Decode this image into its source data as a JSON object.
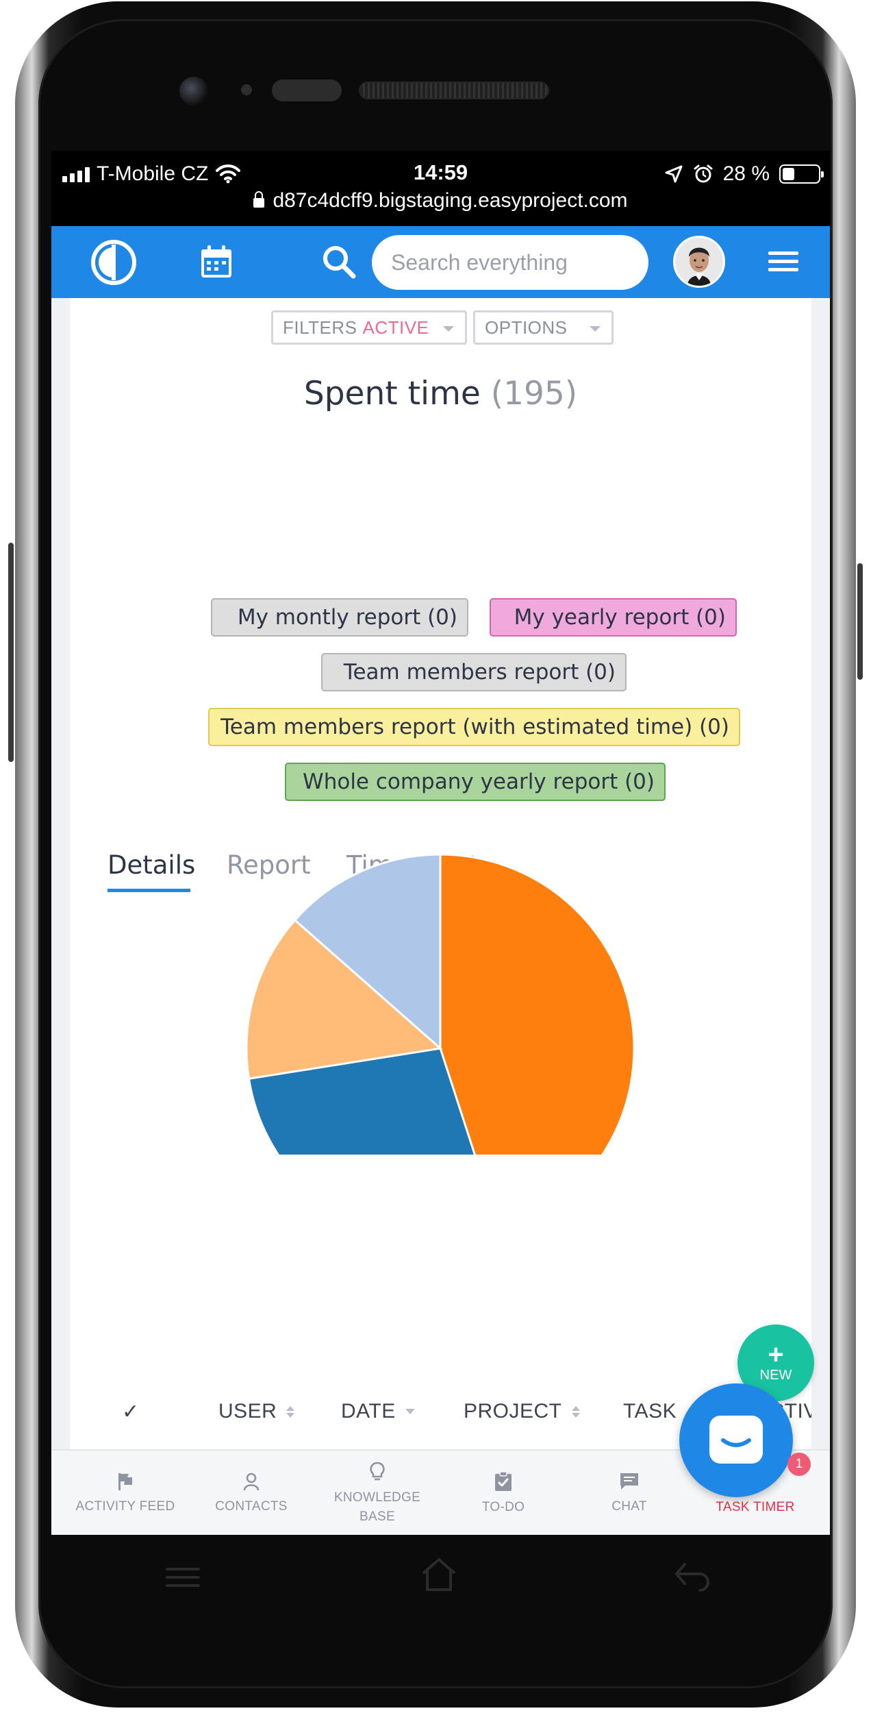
{
  "status_bar": {
    "carrier": "T-Mobile CZ",
    "time": "14:59",
    "battery": "28 %",
    "url": "d87c4dcff9.bigstaging.easyproject.com"
  },
  "header": {
    "search_placeholder": "Search everything",
    "icons": [
      "logo-icon",
      "calendar-icon",
      "search-icon",
      "hamburger-menu-icon"
    ]
  },
  "toolbar": {
    "filters_label": "FILTERS",
    "filters_state": "ACTIVE",
    "options_label": "OPTIONS"
  },
  "page": {
    "title": "Spent time",
    "count": "(195)"
  },
  "saved_queries": [
    {
      "label": "My montly report (0)",
      "bg": "#dedede",
      "border": "#b5b5b5"
    },
    {
      "label": "My yearly report (0)",
      "bg": "#f0a9dc",
      "border": "#d364b5"
    },
    {
      "label": "Team members report (0)",
      "bg": "#dedede",
      "border": "#b5b5b5"
    },
    {
      "label": "Team members report (with estimated time) (0)",
      "bg": "#f9ef9c",
      "border": "#e1ca4f"
    },
    {
      "label": "Whole company yearly report (0)",
      "bg": "#a9d49b",
      "border": "#5fa44f"
    }
  ],
  "tabs": [
    {
      "label": "Details",
      "active": true
    },
    {
      "label": "Report",
      "active": false
    },
    {
      "label": "Timesheet",
      "active": false
    }
  ],
  "chart_data": {
    "type": "pie",
    "slices": [
      {
        "value": 45,
        "color": "#ff7f0e"
      },
      {
        "value": 27.5,
        "color": "#1f77b4"
      },
      {
        "value": 14,
        "color": "#ffbb78"
      },
      {
        "value": 13.5,
        "color": "#aec7e8"
      }
    ]
  },
  "table": {
    "columns": [
      "✓",
      "USER",
      "DATE",
      "PROJECT",
      "TASK",
      "ACTIV"
    ]
  },
  "fab": {
    "new_plus": "+",
    "new_label": "NEW"
  },
  "chat_badge": "1",
  "bottom_nav": [
    {
      "label": "ACTIVITY FEED",
      "icon": "flag-icon"
    },
    {
      "label": "CONTACTS",
      "icon": "person-icon"
    },
    {
      "label": "KNOWLEDGE BASE",
      "icon": "lightbulb-icon"
    },
    {
      "label": "TO-DO",
      "icon": "clipboard-check-icon"
    },
    {
      "label": "CHAT",
      "icon": "chat-bubble-icon"
    },
    {
      "label": "TASK TIMER",
      "icon": "stopwatch-icon"
    }
  ],
  "colors": {
    "brand_blue": "#1f87e5",
    "accent_teal": "#19c2a1",
    "active_pink": "#ec6a8f",
    "timer_red": "#e52e47"
  }
}
